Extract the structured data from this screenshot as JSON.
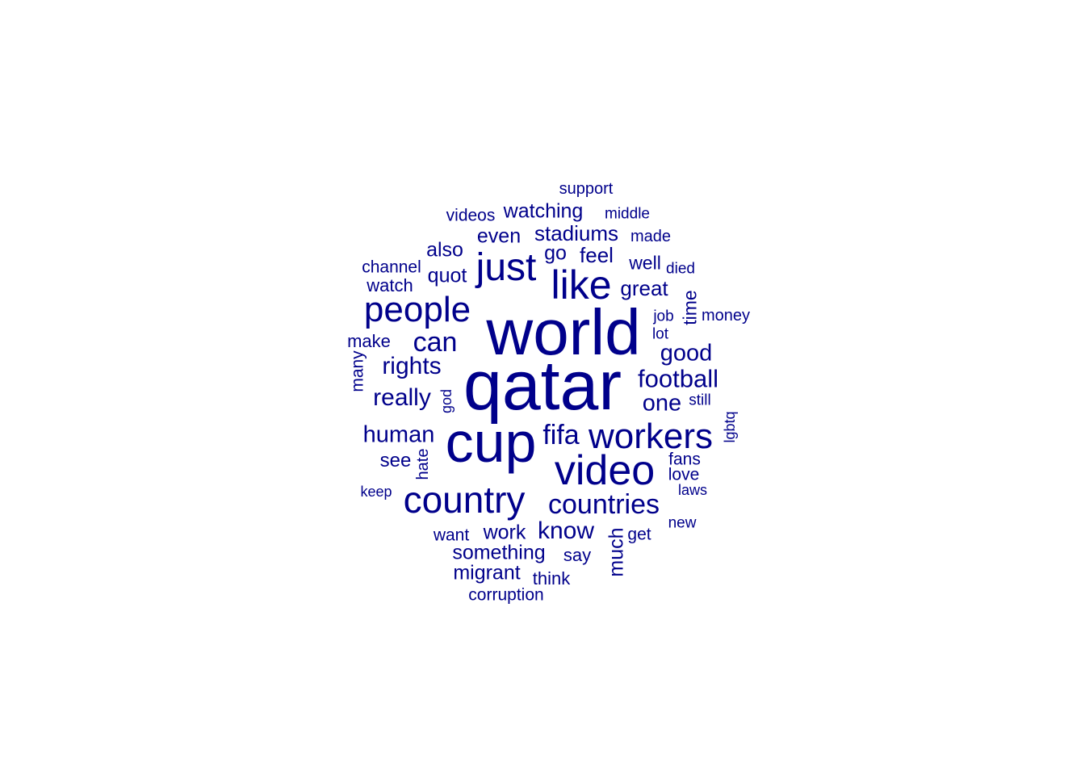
{
  "word_color": "#00008b",
  "background_color": "#ffffff",
  "words": [
    {
      "text": "qatar",
      "rotated": false
    },
    {
      "text": "world",
      "rotated": false
    },
    {
      "text": "cup",
      "rotated": false
    },
    {
      "text": "video",
      "rotated": false
    },
    {
      "text": "like",
      "rotated": false
    },
    {
      "text": "just",
      "rotated": false
    },
    {
      "text": "country",
      "rotated": false
    },
    {
      "text": "people",
      "rotated": false
    },
    {
      "text": "workers",
      "rotated": false
    },
    {
      "text": "countries",
      "rotated": false
    },
    {
      "text": "fifa",
      "rotated": false
    },
    {
      "text": "can",
      "rotated": false
    },
    {
      "text": "football",
      "rotated": false
    },
    {
      "text": "rights",
      "rotated": false
    },
    {
      "text": "really",
      "rotated": false
    },
    {
      "text": "know",
      "rotated": false
    },
    {
      "text": "human",
      "rotated": false
    },
    {
      "text": "good",
      "rotated": false
    },
    {
      "text": "one",
      "rotated": false
    },
    {
      "text": "stadiums",
      "rotated": false
    },
    {
      "text": "great",
      "rotated": false
    },
    {
      "text": "feel",
      "rotated": false
    },
    {
      "text": "even",
      "rotated": false
    },
    {
      "text": "watching",
      "rotated": false
    },
    {
      "text": "quot",
      "rotated": false
    },
    {
      "text": "also",
      "rotated": false
    },
    {
      "text": "go",
      "rotated": false
    },
    {
      "text": "something",
      "rotated": false
    },
    {
      "text": "migrant",
      "rotated": false
    },
    {
      "text": "work",
      "rotated": false
    },
    {
      "text": "much",
      "rotated": true
    },
    {
      "text": "see",
      "rotated": false
    },
    {
      "text": "well",
      "rotated": false
    },
    {
      "text": "time",
      "rotated": true
    },
    {
      "text": "make",
      "rotated": false
    },
    {
      "text": "watch",
      "rotated": false
    },
    {
      "text": "think",
      "rotated": false
    },
    {
      "text": "say",
      "rotated": false
    },
    {
      "text": "channel",
      "rotated": false
    },
    {
      "text": "many",
      "rotated": true
    },
    {
      "text": "videos",
      "rotated": false
    },
    {
      "text": "fans",
      "rotated": false
    },
    {
      "text": "love",
      "rotated": false
    },
    {
      "text": "want",
      "rotated": false
    },
    {
      "text": "get",
      "rotated": false
    },
    {
      "text": "hate",
      "rotated": true
    },
    {
      "text": "corruption",
      "rotated": false
    },
    {
      "text": "made",
      "rotated": false
    },
    {
      "text": "money",
      "rotated": false
    },
    {
      "text": "support",
      "rotated": false
    },
    {
      "text": "middle",
      "rotated": false
    },
    {
      "text": "died",
      "rotated": false
    },
    {
      "text": "job",
      "rotated": false
    },
    {
      "text": "lot",
      "rotated": false
    },
    {
      "text": "still",
      "rotated": false
    },
    {
      "text": "god",
      "rotated": true
    },
    {
      "text": "lgbtq",
      "rotated": true
    },
    {
      "text": "keep",
      "rotated": false
    },
    {
      "text": "laws",
      "rotated": false
    },
    {
      "text": "new",
      "rotated": false
    }
  ]
}
